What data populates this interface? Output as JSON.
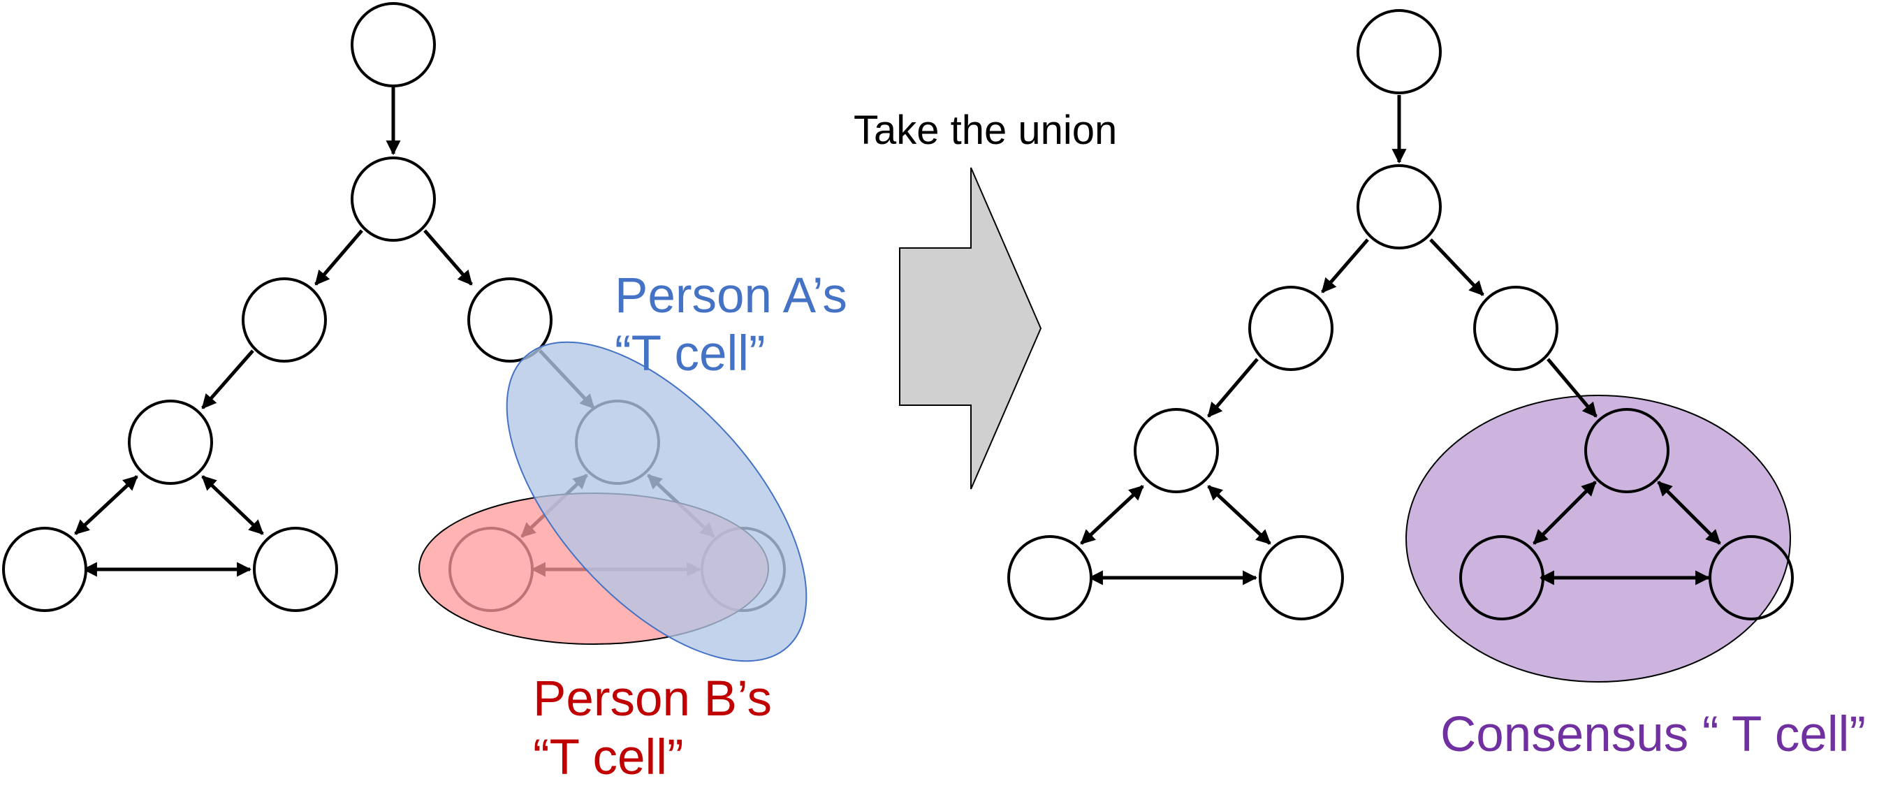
{
  "arrow_label": "Take the union",
  "person_a": {
    "line1": "Person A’s",
    "line2": "“T cell”",
    "fill": "#b4c7e7",
    "stroke": "#4472c4",
    "text_color": "#4472c4"
  },
  "person_b": {
    "line1": "Person B’s",
    "line2": "“T cell”",
    "fill": "#ff9999",
    "stroke": "#000000",
    "text_color": "#c00000"
  },
  "consensus": {
    "label": "Consensus “ T cell”",
    "fill": "#cdb4de",
    "stroke": "#000000",
    "text_color": "#7030a0"
  },
  "arrow_shape_fill": "#d0d0d0"
}
